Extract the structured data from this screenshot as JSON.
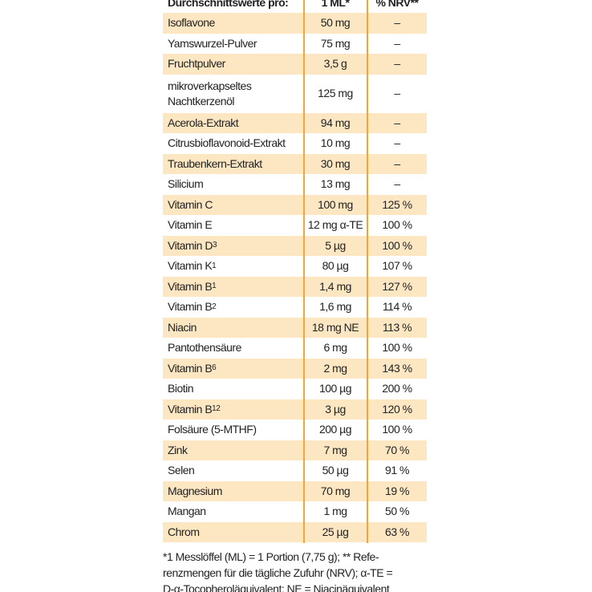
{
  "table": {
    "header": [
      "Durchschnittswerte pro:",
      "1 ML*",
      "% NRV**"
    ],
    "rows": [
      {
        "name": "Isoflavone",
        "amount": "50 mg",
        "nrv": "–"
      },
      {
        "name": "Yamswurzel-Pulver",
        "amount": "75 mg",
        "nrv": "–"
      },
      {
        "name": "Fruchtpulver",
        "amount": "3,5 g",
        "nrv": "–"
      },
      {
        "name": "mikroverkapseltes Nachtkerzenöl",
        "amount": "125 mg",
        "nrv": "–"
      },
      {
        "name": "Acerola-Extrakt",
        "amount": "94 mg",
        "nrv": "–"
      },
      {
        "name": "Citrusbioflavonoid-Extrakt",
        "amount": "10 mg",
        "nrv": "–"
      },
      {
        "name": "Traubenkern-Extrakt",
        "amount": "30 mg",
        "nrv": "–"
      },
      {
        "name": "Silicium",
        "amount": "13 mg",
        "nrv": "–"
      },
      {
        "name": "Vitamin C",
        "amount": "100 mg",
        "nrv": "125 %"
      },
      {
        "name": "Vitamin E",
        "amount": "12 mg α-TE",
        "nrv": "100 %"
      },
      {
        "name": "Vitamin D",
        "sub": "3",
        "amount": "5 µg",
        "nrv": "100 %"
      },
      {
        "name": "Vitamin K",
        "sub": "1",
        "amount": "80 µg",
        "nrv": "107 %"
      },
      {
        "name": "Vitamin B",
        "sub": "1",
        "amount": "1,4 mg",
        "nrv": "127 %"
      },
      {
        "name": "Vitamin B",
        "sub": "2",
        "amount": "1,6 mg",
        "nrv": "114 %"
      },
      {
        "name": "Niacin",
        "amount": "18 mg NE",
        "nrv": "113 %"
      },
      {
        "name": "Pantothensäure",
        "amount": "6 mg",
        "nrv": "100 %"
      },
      {
        "name": "Vitamin B",
        "sub": "6",
        "amount": "2 mg",
        "nrv": "143 %"
      },
      {
        "name": "Biotin",
        "amount": "100 µg",
        "nrv": "200 %"
      },
      {
        "name": "Vitamin B",
        "sub": "12",
        "amount": "3 µg",
        "nrv": "120 %"
      },
      {
        "name": "Folsäure (5-MTHF)",
        "amount": "200 µg",
        "nrv": "100 %"
      },
      {
        "name": "Zink",
        "amount": "7 mg",
        "nrv": "70 %"
      },
      {
        "name": "Selen",
        "amount": "50 µg",
        "nrv": "91 %"
      },
      {
        "name": "Magnesium",
        "amount": "70 mg",
        "nrv": "19 %"
      },
      {
        "name": "Mangan",
        "amount": "1 mg",
        "nrv": "50 %"
      },
      {
        "name": "Chrom",
        "amount": "25 µg",
        "nrv": "63 %"
      }
    ]
  },
  "footnote": [
    "*1 Messlöffel (ML) = 1 Portion (7,75 g); ** Refe-",
    "renzmengen für die tägliche Zufuhr (NRV); α-TE =",
    "D-α-Tocopheroläquivalent; NE = Niacinäquivalent"
  ]
}
